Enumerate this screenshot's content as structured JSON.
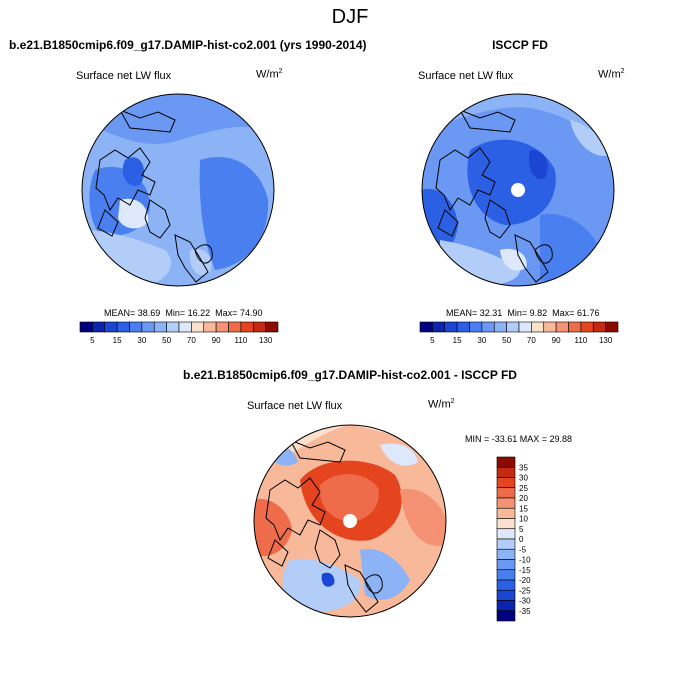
{
  "figure": {
    "season": "DJF",
    "panel_model": {
      "header": "b.e21.B1850cmip6.f09_g17.DAMIP-hist-co2.001 (yrs 1990-2014)",
      "var_label": "Surface net LW flux",
      "units": "W/m",
      "units_exp": "2",
      "stats": {
        "mean_label": "MEAN=",
        "mean": "38.69",
        "min_label": "Min=",
        "min": "16.22",
        "max_label": "Max=",
        "max": "74.90"
      }
    },
    "panel_obs": {
      "header": "ISCCP FD",
      "var_label": "Surface net LW flux",
      "units": "W/m",
      "units_exp": "2",
      "stats": {
        "mean_label": "MEAN=",
        "mean": "32.31",
        "min_label": "Min=",
        "min": "9.82",
        "max_label": "Max=",
        "max": "61.76"
      }
    },
    "panel_diff": {
      "header": "b.e21.B1850cmip6.f09_g17.DAMIP-hist-co2.001 - ISCCP FD",
      "var_label": "Surface net LW flux",
      "units": "W/m",
      "units_exp": "2",
      "minmax": "MIN = -33.61 MAX =  29.88"
    },
    "colorbar_top": {
      "colors": [
        "#00007f",
        "#0b24b0",
        "#1c45d4",
        "#2c60e4",
        "#4a7ff0",
        "#6a98f2",
        "#8cb3f5",
        "#b2cdf8",
        "#dde8fb",
        "#fbe0cc",
        "#f8b99a",
        "#f49273",
        "#ee6c4a",
        "#e4451f",
        "#c42a12",
        "#8c0a00"
      ],
      "tick_labels": [
        "5",
        "15",
        "30",
        "50",
        "70",
        "90",
        "110",
        "130"
      ]
    },
    "colorbar_diff": {
      "colors": [
        "#00007f",
        "#0b24b0",
        "#1c45d4",
        "#2c60e4",
        "#4a7ff0",
        "#6a98f2",
        "#8cb3f5",
        "#b2cdf8",
        "#dde8fb",
        "#fbe0cc",
        "#f8b99a",
        "#f49273",
        "#ee6c4a",
        "#e4451f",
        "#c42a12",
        "#8c0a00"
      ],
      "tick_labels": [
        "35",
        "30",
        "25",
        "20",
        "15",
        "10",
        "5",
        "0",
        "-5",
        "-10",
        "-15",
        "-20",
        "-25",
        "-30",
        "-35"
      ]
    }
  }
}
